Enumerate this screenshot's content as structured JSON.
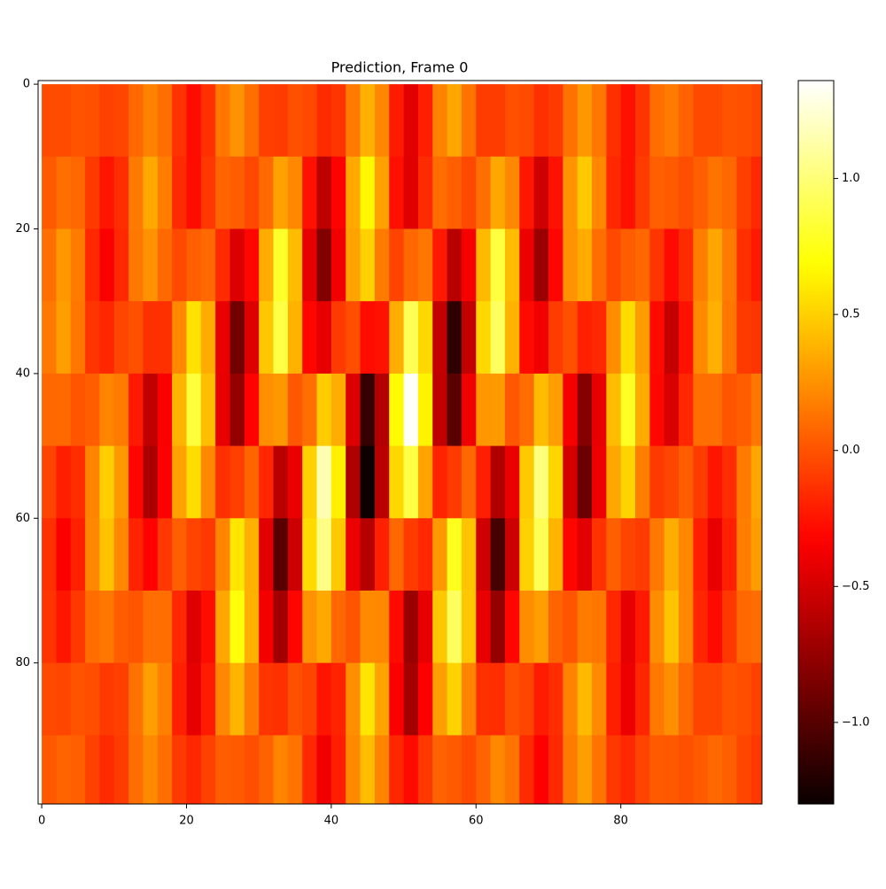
{
  "chart_data": {
    "type": "heatmap",
    "title": "Prediction, Frame 0",
    "colormap": "hot",
    "x": [
      1,
      3,
      5,
      7,
      9,
      11,
      13,
      15,
      17,
      19,
      21,
      23,
      25,
      27,
      29,
      31,
      33,
      35,
      37,
      39,
      41,
      43,
      45,
      47,
      49,
      51,
      53,
      55,
      57,
      59,
      61,
      63,
      65,
      67,
      69,
      71,
      73,
      75,
      77,
      79,
      81,
      83,
      85,
      87,
      89,
      91,
      93,
      95,
      97,
      99
    ],
    "y": [
      5,
      15,
      25,
      35,
      45,
      55,
      65,
      75,
      85,
      95
    ],
    "values": [
      [
        -0.03,
        -0.03,
        0,
        -0.01,
        -0.07,
        -0.05,
        0.08,
        0.19,
        0.11,
        -0.13,
        -0.28,
        -0.14,
        0.14,
        0.25,
        0.11,
        -0.08,
        -0.09,
        -0.01,
        -0.04,
        -0.16,
        -0.12,
        0.16,
        0.37,
        0.21,
        -0.22,
        -0.44,
        -0.21,
        0.19,
        0.33,
        0.13,
        -0.09,
        -0.09,
        -0.01,
        -0.03,
        -0.14,
        -0.1,
        0.12,
        0.27,
        0.14,
        -0.14,
        -0.26,
        -0.12,
        0.1,
        0.16,
        0.06,
        -0.04,
        -0.04,
        0,
        -0.01,
        -0.04
      ],
      [
        0.03,
        0.11,
        0.08,
        -0.1,
        -0.25,
        -0.15,
        0.16,
        0.34,
        0.17,
        -0.16,
        -0.28,
        -0.11,
        0.07,
        0.04,
        -0.04,
        0.09,
        0.31,
        0.21,
        -0.26,
        -0.59,
        -0.32,
        0.34,
        0.66,
        0.31,
        -0.27,
        -0.45,
        -0.16,
        0.1,
        0.05,
        -0.04,
        0.11,
        0.33,
        0.21,
        -0.24,
        -0.52,
        -0.26,
        0.26,
        0.47,
        0.21,
        -0.17,
        -0.26,
        -0.09,
        0.05,
        0.03,
        -0.02,
        0.05,
        0.13,
        0.08,
        -0.08,
        -0.17
      ],
      [
        0.11,
        0.27,
        0.16,
        -0.17,
        -0.35,
        -0.17,
        0.15,
        0.25,
        0.09,
        -0.04,
        0.05,
        0.09,
        -0.16,
        -0.47,
        -0.3,
        0.35,
        0.8,
        0.42,
        -0.43,
        -0.83,
        -0.38,
        0.32,
        0.5,
        0.16,
        -0.06,
        0.08,
        0.14,
        -0.23,
        -0.61,
        -0.36,
        0.41,
        0.85,
        0.42,
        -0.4,
        -0.73,
        -0.31,
        0.25,
        0.35,
        0.11,
        -0.04,
        0.04,
        0.08,
        -0.12,
        -0.29,
        -0.16,
        0.17,
        0.33,
        0.16,
        -0.14,
        -0.23
      ],
      [
        0.15,
        0.3,
        0.14,
        -0.12,
        -0.18,
        -0.05,
        -0.01,
        -0.14,
        -0.14,
        0.21,
        0.57,
        0.35,
        -0.41,
        -0.89,
        -0.47,
        0.46,
        0.87,
        0.38,
        -0.31,
        -0.43,
        -0.1,
        -0.02,
        -0.28,
        -0.26,
        0.36,
        0.91,
        0.53,
        -0.57,
        -1.16,
        -0.57,
        0.53,
        0.93,
        0.38,
        -0.29,
        -0.38,
        -0.09,
        -0.01,
        -0.2,
        -0.17,
        0.23,
        0.54,
        0.29,
        -0.29,
        -0.56,
        -0.26,
        0.22,
        0.37,
        0.14,
        -0.1,
        -0.12
      ],
      [
        0.08,
        0.09,
        0.01,
        0.04,
        0.2,
        0.16,
        -0.23,
        -0.58,
        -0.34,
        0.39,
        0.84,
        0.43,
        -0.42,
        -0.76,
        -0.32,
        0.24,
        0.27,
        0.02,
        0.11,
        0.48,
        0.36,
        -0.47,
        -1.13,
        -0.63,
        0.67,
        1.34,
        0.64,
        -0.58,
        -0.99,
        -0.39,
        0.27,
        0.28,
        0.02,
        0.1,
        0.42,
        0.3,
        -0.36,
        -0.81,
        -0.42,
        0.42,
        0.78,
        0.35,
        -0.3,
        -0.48,
        -0.18,
        0.11,
        0.11,
        0.01,
        0.04,
        0.14
      ],
      [
        -0.06,
        -0.21,
        -0.15,
        0.2,
        0.49,
        0.28,
        -0.31,
        -0.66,
        -0.33,
        0.31,
        0.55,
        0.21,
        -0.14,
        -0.08,
        0.07,
        -0.18,
        -0.6,
        -0.41,
        0.5,
        1.16,
        0.63,
        -0.65,
        -1.29,
        -0.6,
        0.53,
        0.87,
        0.32,
        -0.19,
        -0.1,
        0.08,
        -0.21,
        -0.64,
        -0.41,
        0.47,
        1.01,
        0.52,
        -0.5,
        -0.92,
        -0.4,
        0.33,
        0.51,
        0.17,
        -0.1,
        -0.05,
        0.04,
        -0.09,
        -0.25,
        -0.15,
        0.16,
        0.33
      ],
      [
        -0.14,
        -0.34,
        -0.2,
        0.21,
        0.44,
        0.21,
        -0.19,
        -0.32,
        -0.11,
        0.05,
        -0.06,
        -0.11,
        0.2,
        0.58,
        0.37,
        -0.44,
        -0.99,
        -0.53,
        0.54,
        1.04,
        0.47,
        -0.4,
        -0.62,
        -0.2,
        0.08,
        -0.09,
        -0.17,
        0.28,
        0.76,
        0.45,
        -0.51,
        -1.06,
        -0.53,
        0.5,
        0.91,
        0.39,
        -0.31,
        -0.44,
        -0.13,
        0.05,
        -0.06,
        -0.09,
        0.15,
        0.36,
        0.21,
        -0.21,
        -0.42,
        -0.2,
        0.17,
        0.29
      ],
      [
        -0.12,
        -0.24,
        -0.11,
        0.1,
        0.14,
        0.04,
        0.01,
        0.11,
        0.11,
        -0.17,
        -0.46,
        -0.28,
        0.33,
        0.71,
        0.37,
        -0.37,
        -0.7,
        -0.31,
        0.25,
        0.34,
        0.08,
        0.01,
        0.22,
        0.21,
        -0.29,
        -0.73,
        -0.42,
        0.46,
        0.93,
        0.46,
        -0.42,
        -0.75,
        -0.31,
        0.23,
        0.3,
        0.07,
        0.01,
        0.16,
        0.14,
        -0.18,
        -0.43,
        -0.23,
        0.23,
        0.45,
        0.21,
        -0.18,
        -0.29,
        -0.11,
        0.08,
        0.1
      ],
      [
        -0.04,
        -0.05,
        0,
        -0.02,
        -0.1,
        -0.08,
        0.12,
        0.3,
        0.18,
        -0.2,
        -0.43,
        -0.22,
        0.21,
        0.39,
        0.16,
        -0.12,
        -0.14,
        -0.01,
        -0.06,
        -0.25,
        -0.19,
        0.24,
        0.58,
        0.32,
        -0.34,
        -0.69,
        -0.33,
        0.3,
        0.51,
        0.2,
        -0.14,
        -0.15,
        -0.01,
        -0.05,
        -0.22,
        -0.15,
        0.19,
        0.41,
        0.22,
        -0.21,
        -0.4,
        -0.18,
        0.15,
        0.24,
        0.09,
        -0.06,
        -0.06,
        0,
        -0.02,
        -0.07
      ],
      [
        0.02,
        0.07,
        0.05,
        -0.07,
        -0.16,
        -0.09,
        0.1,
        0.22,
        0.11,
        -0.1,
        -0.18,
        -0.07,
        0.04,
        0.03,
        -0.02,
        0.06,
        0.2,
        0.13,
        -0.17,
        -0.38,
        -0.21,
        0.22,
        0.42,
        0.2,
        -0.18,
        -0.29,
        -0.11,
        0.06,
        0.03,
        -0.03,
        0.07,
        0.21,
        0.13,
        -0.16,
        -0.33,
        -0.17,
        0.16,
        0.3,
        0.13,
        -0.11,
        -0.17,
        -0.06,
        0.03,
        0.02,
        -0.01,
        0.03,
        0.08,
        0.05,
        -0.05,
        -0.11
      ]
    ],
    "xlim": [
      -0.5,
      99.5
    ],
    "ylim": [
      99.5,
      -0.5
    ],
    "xticks": [
      0,
      20,
      40,
      60,
      80
    ],
    "yticks": [
      0,
      20,
      40,
      60,
      80
    ],
    "colorbar": {
      "lim": [
        -1.3,
        1.36
      ],
      "ticks": [
        {
          "value": -1,
          "label": "−1.0"
        },
        {
          "value": -0.5,
          "label": "−0.5"
        },
        {
          "value": 0,
          "label": "0.0"
        },
        {
          "value": 0.5,
          "label": "0.5"
        },
        {
          "value": 1,
          "label": "1.0"
        }
      ]
    }
  }
}
